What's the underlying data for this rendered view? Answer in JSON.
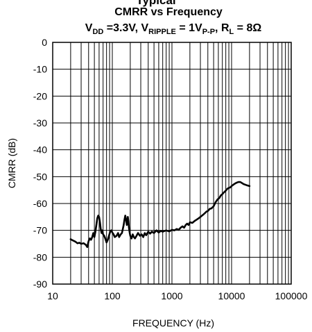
{
  "chart_data": {
    "type": "line",
    "title_top": "Typical",
    "title": "CMRR vs Frequency",
    "subtitle": {
      "vdd_label": "V",
      "vdd_sub": "DD",
      "vdd_value": " =3.3V, V",
      "ripple_sub": "RIPPLE",
      "ripple_value": " = 1V",
      "pp_sub": "P-P",
      "rl_sep": ", R",
      "rl_sub": "L",
      "rl_value": " = 8Ω"
    },
    "xlabel": "FREQUENCY (Hz)",
    "ylabel": "CMRR (dB)",
    "x_scale": "log",
    "xlim": [
      10,
      100000
    ],
    "ylim": [
      -90,
      0
    ],
    "x_ticks": [
      10,
      100,
      1000,
      10000,
      100000
    ],
    "x_tick_labels": [
      "10",
      "100",
      "1000",
      "10000",
      "100000"
    ],
    "y_ticks": [
      0,
      -10,
      -20,
      -30,
      -40,
      -50,
      -60,
      -70,
      -80,
      -90
    ],
    "y_tick_labels": [
      "0",
      "-10",
      "-20",
      "-30",
      "-40",
      "-50",
      "-60",
      "-70",
      "-80",
      "-90"
    ],
    "grid": true,
    "series": [
      {
        "color": "#000000",
        "points": [
          [
            20,
            -73.3
          ],
          [
            22,
            -73.8
          ],
          [
            24,
            -74.2
          ],
          [
            26,
            -74.8
          ],
          [
            28,
            -74.6
          ],
          [
            30,
            -75.0
          ],
          [
            33,
            -74.8
          ],
          [
            36,
            -75.4
          ],
          [
            38,
            -76.2
          ],
          [
            40,
            -74.0
          ],
          [
            42,
            -73.0
          ],
          [
            44,
            -73.5
          ],
          [
            46,
            -72.5
          ],
          [
            48,
            -71.0
          ],
          [
            50,
            -72.5
          ],
          [
            52,
            -70.5
          ],
          [
            54,
            -68.0
          ],
          [
            56,
            -65.5
          ],
          [
            58,
            -64.5
          ],
          [
            60,
            -65.0
          ],
          [
            62,
            -67.0
          ],
          [
            64,
            -69.5
          ],
          [
            66,
            -71.0
          ],
          [
            68,
            -70.0
          ],
          [
            70,
            -71.5
          ],
          [
            73,
            -72.0
          ],
          [
            76,
            -73.0
          ],
          [
            80,
            -74.5
          ],
          [
            84,
            -73.5
          ],
          [
            88,
            -72.0
          ],
          [
            92,
            -70.5
          ],
          [
            96,
            -70.0
          ],
          [
            100,
            -70.8
          ],
          [
            105,
            -71.5
          ],
          [
            110,
            -72.5
          ],
          [
            118,
            -72.0
          ],
          [
            125,
            -71.0
          ],
          [
            130,
            -72.5
          ],
          [
            138,
            -71.5
          ],
          [
            145,
            -71.0
          ],
          [
            150,
            -69.5
          ],
          [
            155,
            -68.0
          ],
          [
            160,
            -66.0
          ],
          [
            165,
            -64.5
          ],
          [
            170,
            -66.0
          ],
          [
            175,
            -68.0
          ],
          [
            178,
            -67.0
          ],
          [
            182,
            -65.0
          ],
          [
            186,
            -66.5
          ],
          [
            190,
            -69.0
          ],
          [
            196,
            -71.0
          ],
          [
            200,
            -72.0
          ],
          [
            210,
            -73.0
          ],
          [
            220,
            -71.5
          ],
          [
            230,
            -72.5
          ],
          [
            240,
            -73.0
          ],
          [
            255,
            -72.0
          ],
          [
            270,
            -71.0
          ],
          [
            290,
            -72.0
          ],
          [
            310,
            -71.5
          ],
          [
            330,
            -72.5
          ],
          [
            350,
            -71.0
          ],
          [
            370,
            -71.8
          ],
          [
            400,
            -70.5
          ],
          [
            430,
            -71.2
          ],
          [
            460,
            -70.5
          ],
          [
            500,
            -71.0
          ],
          [
            550,
            -70.0
          ],
          [
            600,
            -70.8
          ],
          [
            650,
            -70.2
          ],
          [
            700,
            -70.5
          ],
          [
            800,
            -70.0
          ],
          [
            900,
            -70.4
          ],
          [
            1000,
            -69.8
          ],
          [
            1100,
            -70.0
          ],
          [
            1200,
            -69.5
          ],
          [
            1300,
            -69.8
          ],
          [
            1400,
            -69.0
          ],
          [
            1500,
            -68.5
          ],
          [
            1600,
            -69.0
          ],
          [
            1700,
            -68.0
          ],
          [
            1800,
            -67.5
          ],
          [
            1900,
            -68.0
          ],
          [
            2000,
            -67.0
          ],
          [
            2200,
            -67.2
          ],
          [
            2400,
            -66.5
          ],
          [
            2600,
            -66.0
          ],
          [
            2800,
            -65.5
          ],
          [
            3000,
            -65.0
          ],
          [
            3200,
            -64.5
          ],
          [
            3400,
            -64.0
          ],
          [
            3600,
            -63.5
          ],
          [
            3800,
            -63.0
          ],
          [
            4000,
            -62.8
          ],
          [
            4300,
            -62.0
          ],
          [
            4600,
            -61.8
          ],
          [
            5000,
            -61.0
          ],
          [
            5400,
            -59.5
          ],
          [
            5800,
            -58.5
          ],
          [
            6200,
            -58.0
          ],
          [
            6600,
            -57.0
          ],
          [
            7000,
            -56.5
          ],
          [
            7500,
            -55.8
          ],
          [
            8000,
            -55.2
          ],
          [
            8500,
            -54.5
          ],
          [
            9000,
            -54.2
          ],
          [
            9500,
            -54.0
          ],
          [
            10000,
            -53.5
          ],
          [
            11000,
            -52.8
          ],
          [
            12000,
            -52.3
          ],
          [
            13000,
            -52.0
          ],
          [
            14000,
            -52.0
          ],
          [
            15000,
            -52.4
          ],
          [
            16000,
            -52.8
          ],
          [
            17000,
            -53.0
          ],
          [
            18000,
            -53.2
          ],
          [
            20000,
            -53.5
          ]
        ]
      }
    ]
  }
}
